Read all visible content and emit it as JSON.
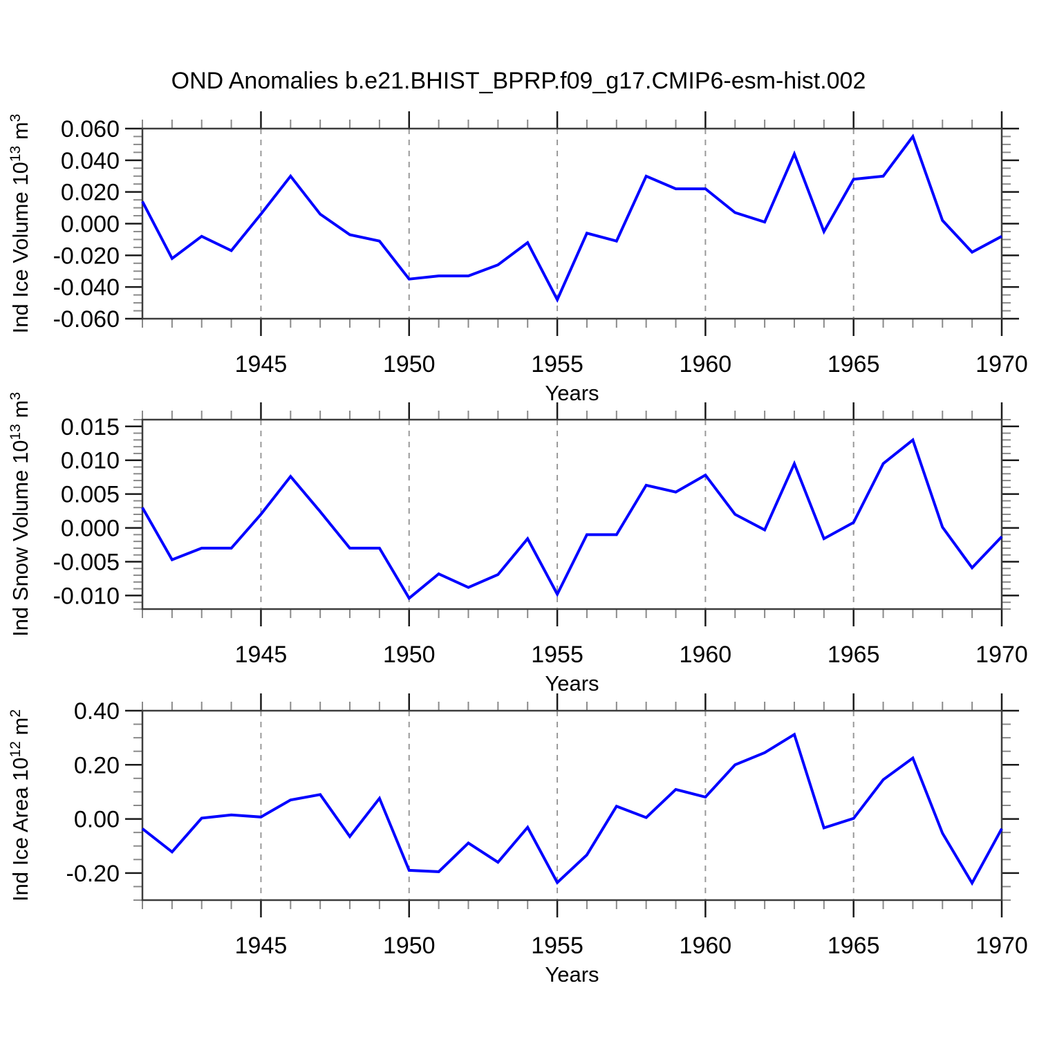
{
  "title": "OND Anomalies b.e21.BHIST_BPRP.f09_g17.CMIP6-esm-hist.002",
  "x_axis": {
    "label": "Years",
    "start_year": 1941,
    "end_year": 1970,
    "minor_step": 1,
    "major_ticks": [
      "1945",
      "1950",
      "1955",
      "1960",
      "1965",
      "1970"
    ],
    "major_tick_years": [
      1945,
      1950,
      1955,
      1960,
      1965,
      1970
    ],
    "gridline_years": [
      1945,
      1950,
      1955,
      1960,
      1965
    ]
  },
  "colors": {
    "line": "#0000FF",
    "frame": "#3c3c3c",
    "major_tick": "#1a1a1a",
    "minor_tick": "#8a8a8a",
    "gridline": "#999999",
    "text": "#000000",
    "background": "#FFFFFF"
  },
  "chart_data": [
    {
      "type": "line",
      "panel": "top",
      "ylabel": "Ind Ice Volume 10^13 m^3",
      "ylabel_parts": [
        {
          "text": "Ind Ice Volume 10",
          "sup": false
        },
        {
          "text": "13",
          "sup": true
        },
        {
          "text": " m",
          "sup": false
        },
        {
          "text": "3",
          "sup": true
        }
      ],
      "xlabel": "Years",
      "x_start": 1941,
      "x_end": 1970,
      "x_step": 1,
      "x_major_ticks": [
        1945,
        1950,
        1955,
        1960,
        1965,
        1970
      ],
      "gridline_years": [
        1945,
        1950,
        1955,
        1960,
        1965
      ],
      "ylim": [
        -0.06,
        0.06
      ],
      "ytick_values": [
        0.06,
        0.04,
        0.02,
        0.0,
        -0.02,
        -0.04,
        -0.06
      ],
      "ytick_labels": [
        "0.060",
        "0.040",
        "0.020",
        "0.000",
        "-0.020",
        "-0.040",
        "-0.060"
      ],
      "y_minor_step": 0.005,
      "values": [
        0.014,
        -0.022,
        -0.008,
        -0.017,
        0.006,
        0.03,
        0.006,
        -0.007,
        -0.011,
        -0.035,
        -0.033,
        -0.033,
        -0.026,
        -0.012,
        -0.048,
        -0.006,
        -0.011,
        0.03,
        0.022,
        0.022,
        0.007,
        0.001,
        0.044,
        -0.005,
        0.028,
        0.03,
        0.055,
        0.002,
        -0.018,
        -0.008
      ]
    },
    {
      "type": "line",
      "panel": "middle",
      "ylabel": "Ind Snow Volume 10^13 m^3",
      "ylabel_parts": [
        {
          "text": "Ind Snow Volume 10",
          "sup": false
        },
        {
          "text": "13",
          "sup": true
        },
        {
          "text": " m",
          "sup": false
        },
        {
          "text": "3",
          "sup": true
        }
      ],
      "xlabel": "Years",
      "x_start": 1941,
      "x_end": 1970,
      "x_step": 1,
      "x_major_ticks": [
        1945,
        1950,
        1955,
        1960,
        1965,
        1970
      ],
      "gridline_years": [
        1945,
        1950,
        1955,
        1960,
        1965
      ],
      "ylim": [
        -0.012,
        0.016
      ],
      "ytick_values": [
        0.015,
        0.01,
        0.005,
        0.0,
        -0.005,
        -0.01
      ],
      "ytick_labels": [
        "0.015",
        "0.010",
        "0.005",
        "0.000",
        "-0.005",
        "-0.010"
      ],
      "y_minor_step": 0.001,
      "values": [
        0.003,
        -0.0047,
        -0.003,
        -0.003,
        0.002,
        0.0076,
        0.0024,
        -0.003,
        -0.003,
        -0.0104,
        -0.0068,
        -0.0088,
        -0.0069,
        -0.0016,
        -0.0098,
        -0.001,
        -0.001,
        0.0063,
        0.0053,
        0.0078,
        0.002,
        -0.0003,
        0.0095,
        -0.0016,
        0.0008,
        0.0095,
        0.013,
        0.0001,
        -0.0059,
        -0.0013
      ]
    },
    {
      "type": "line",
      "panel": "bottom",
      "ylabel": "Ind Ice Area 10^12 m^2",
      "ylabel_parts": [
        {
          "text": "Ind Ice Area 10",
          "sup": false
        },
        {
          "text": "12",
          "sup": true
        },
        {
          "text": " m",
          "sup": false
        },
        {
          "text": "2",
          "sup": true
        }
      ],
      "xlabel": "Years",
      "x_start": 1941,
      "x_end": 1970,
      "x_step": 1,
      "x_major_ticks": [
        1945,
        1950,
        1955,
        1960,
        1965,
        1970
      ],
      "gridline_years": [
        1945,
        1950,
        1955,
        1960,
        1965
      ],
      "ylim": [
        -0.3,
        0.4
      ],
      "ytick_values": [
        0.4,
        0.2,
        0.0,
        -0.2
      ],
      "ytick_labels": [
        "0.40",
        "0.20",
        "0.00",
        "-0.20"
      ],
      "y_minor_step": 0.05,
      "values": [
        -0.036,
        -0.122,
        0.003,
        0.015,
        0.007,
        0.07,
        0.09,
        -0.065,
        0.076,
        -0.19,
        -0.195,
        -0.089,
        -0.16,
        -0.031,
        -0.235,
        -0.133,
        0.047,
        0.005,
        0.109,
        0.081,
        0.2,
        0.245,
        0.312,
        -0.033,
        0.002,
        0.145,
        0.225,
        -0.053,
        -0.237,
        -0.036
      ]
    }
  ]
}
